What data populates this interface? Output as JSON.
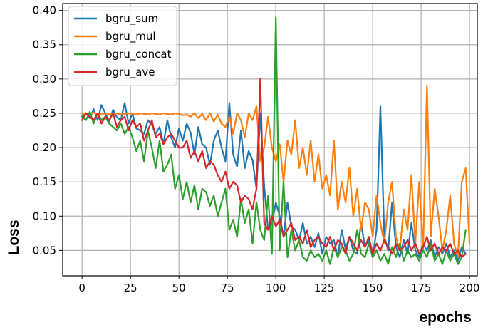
{
  "chart_data": {
    "type": "line",
    "xlabel": "epochs",
    "ylabel": "Loss",
    "xlim": [
      -10,
      204
    ],
    "ylim": [
      0.013,
      0.41
    ],
    "x_ticks": [
      0,
      25,
      50,
      75,
      100,
      125,
      150,
      175,
      200
    ],
    "y_ticks": [
      0.05,
      0.1,
      0.15,
      0.2,
      0.25,
      0.3,
      0.35,
      0.4
    ],
    "x_tick_labels": [
      "0",
      "25",
      "50",
      "75",
      "100",
      "125",
      "150",
      "175",
      "200"
    ],
    "y_tick_labels": [
      "0.05",
      "0.10",
      "0.15",
      "0.20",
      "0.25",
      "0.30",
      "0.35",
      "0.40"
    ],
    "grid": true,
    "legend_position": "top-left",
    "x_step": 2,
    "series": [
      {
        "name": "bgru_sum",
        "color": "#1f77b4",
        "values": [
          0.245,
          0.25,
          0.243,
          0.256,
          0.24,
          0.262,
          0.25,
          0.238,
          0.255,
          0.244,
          0.24,
          0.265,
          0.235,
          0.25,
          0.228,
          0.225,
          0.22,
          0.24,
          0.233,
          0.22,
          0.23,
          0.205,
          0.24,
          0.215,
          0.2,
          0.228,
          0.21,
          0.235,
          0.222,
          0.19,
          0.23,
          0.205,
          0.2,
          0.175,
          0.21,
          0.225,
          0.2,
          0.18,
          0.265,
          0.19,
          0.172,
          0.225,
          0.17,
          0.195,
          0.182,
          0.14,
          0.25,
          0.145,
          0.08,
          0.09,
          0.12,
          0.1,
          0.07,
          0.12,
          0.085,
          0.08,
          0.065,
          0.09,
          0.06,
          0.07,
          0.055,
          0.075,
          0.045,
          0.07,
          0.06,
          0.065,
          0.04,
          0.08,
          0.052,
          0.07,
          0.05,
          0.045,
          0.09,
          0.055,
          0.065,
          0.04,
          0.08,
          0.26,
          0.07,
          0.05,
          0.12,
          0.055,
          0.04,
          0.065,
          0.045,
          0.09,
          0.05,
          0.04,
          0.06,
          0.05,
          0.065,
          0.04,
          0.055,
          0.045,
          0.06,
          0.04,
          0.05,
          0.035,
          0.055,
          0.045
        ]
      },
      {
        "name": "bgru_mul",
        "color": "#ff7f0e",
        "values": [
          0.248,
          0.25,
          0.249,
          0.251,
          0.248,
          0.249,
          0.25,
          0.248,
          0.249,
          0.25,
          0.248,
          0.249,
          0.25,
          0.249,
          0.248,
          0.25,
          0.249,
          0.248,
          0.25,
          0.249,
          0.248,
          0.25,
          0.249,
          0.248,
          0.25,
          0.249,
          0.247,
          0.248,
          0.245,
          0.25,
          0.243,
          0.249,
          0.24,
          0.25,
          0.238,
          0.248,
          0.235,
          0.23,
          0.245,
          0.22,
          0.25,
          0.24,
          0.215,
          0.25,
          0.24,
          0.26,
          0.18,
          0.2,
          0.245,
          0.2,
          0.18,
          0.205,
          0.15,
          0.21,
          0.19,
          0.24,
          0.17,
          0.2,
          0.16,
          0.21,
          0.15,
          0.19,
          0.14,
          0.16,
          0.13,
          0.21,
          0.11,
          0.15,
          0.12,
          0.17,
          0.1,
          0.14,
          0.08,
          0.12,
          0.11,
          0.07,
          0.13,
          0.09,
          0.06,
          0.12,
          0.15,
          0.07,
          0.05,
          0.11,
          0.08,
          0.16,
          0.06,
          0.15,
          0.05,
          0.29,
          0.07,
          0.14,
          0.1,
          0.05,
          0.08,
          0.13,
          0.06,
          0.04,
          0.15,
          0.17,
          0.06
        ]
      },
      {
        "name": "bgru_concat",
        "color": "#2ca02c",
        "values": [
          0.245,
          0.24,
          0.252,
          0.235,
          0.25,
          0.24,
          0.245,
          0.235,
          0.23,
          0.225,
          0.235,
          0.22,
          0.23,
          0.215,
          0.195,
          0.21,
          0.18,
          0.225,
          0.2,
          0.17,
          0.21,
          0.165,
          0.175,
          0.19,
          0.14,
          0.16,
          0.125,
          0.15,
          0.12,
          0.145,
          0.11,
          0.14,
          0.135,
          0.115,
          0.13,
          0.1,
          0.12,
          0.14,
          0.08,
          0.095,
          0.07,
          0.125,
          0.09,
          0.11,
          0.06,
          0.12,
          0.08,
          0.065,
          0.13,
          0.045,
          0.39,
          0.05,
          0.15,
          0.04,
          0.08,
          0.05,
          0.065,
          0.04,
          0.035,
          0.05,
          0.04,
          0.045,
          0.035,
          0.05,
          0.03,
          0.055,
          0.04,
          0.055,
          0.05,
          0.035,
          0.045,
          0.08,
          0.045,
          0.04,
          0.06,
          0.04,
          0.05,
          0.035,
          0.045,
          0.03,
          0.055,
          0.04,
          0.06,
          0.035,
          0.05,
          0.04,
          0.045,
          0.035,
          0.05,
          0.04,
          0.06,
          0.035,
          0.045,
          0.03,
          0.05,
          0.035,
          0.045,
          0.03,
          0.04,
          0.08
        ]
      },
      {
        "name": "bgru_ave",
        "color": "#d62728",
        "values": [
          0.24,
          0.25,
          0.245,
          0.24,
          0.25,
          0.235,
          0.245,
          0.24,
          0.25,
          0.23,
          0.24,
          0.245,
          0.225,
          0.24,
          0.23,
          0.235,
          0.21,
          0.225,
          0.24,
          0.215,
          0.22,
          0.205,
          0.215,
          0.22,
          0.21,
          0.2,
          0.2,
          0.21,
          0.185,
          0.195,
          0.18,
          0.195,
          0.17,
          0.18,
          0.175,
          0.16,
          0.15,
          0.165,
          0.14,
          0.15,
          0.145,
          0.12,
          0.13,
          0.125,
          0.11,
          0.14,
          0.3,
          0.09,
          0.08,
          0.1,
          0.085,
          0.095,
          0.07,
          0.08,
          0.09,
          0.065,
          0.07,
          0.06,
          0.08,
          0.055,
          0.065,
          0.07,
          0.06,
          0.055,
          0.07,
          0.05,
          0.065,
          0.06,
          0.045,
          0.07,
          0.06,
          0.05,
          0.065,
          0.055,
          0.07,
          0.045,
          0.06,
          0.05,
          0.065,
          0.055,
          0.045,
          0.06,
          0.05,
          0.055,
          0.065,
          0.05,
          0.06,
          0.045,
          0.055,
          0.07,
          0.05,
          0.06,
          0.045,
          0.055,
          0.05,
          0.06,
          0.045,
          0.05,
          0.04,
          0.045
        ]
      }
    ]
  }
}
